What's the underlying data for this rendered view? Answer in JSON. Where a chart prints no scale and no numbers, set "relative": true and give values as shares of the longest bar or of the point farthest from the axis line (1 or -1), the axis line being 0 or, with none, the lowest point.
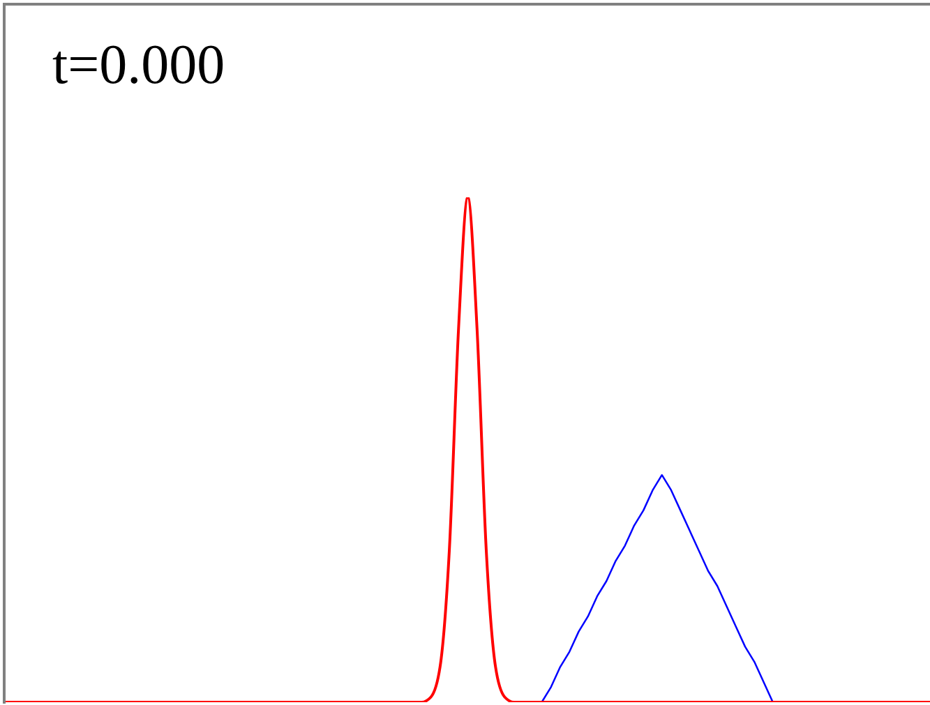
{
  "chart_data": {
    "type": "line",
    "relative": true,
    "marker": "none",
    "annotations": [
      "t=0.000"
    ],
    "categories": [
      null,
      null,
      null,
      null,
      null,
      null,
      null,
      null,
      null,
      null,
      null,
      null,
      null,
      null,
      null,
      null,
      null,
      null,
      null,
      null,
      null,
      null,
      null,
      null,
      null,
      null,
      null,
      null,
      null,
      null,
      null,
      null,
      null,
      null,
      null,
      null,
      null,
      null,
      null,
      null,
      null,
      null,
      null,
      null,
      null,
      null,
      null,
      null,
      null,
      null,
      null,
      null,
      null,
      null,
      null,
      null,
      null,
      null,
      null,
      null,
      null,
      null,
      null,
      null,
      null,
      null,
      null,
      null,
      null,
      null,
      null,
      null,
      null,
      null,
      null,
      null,
      null,
      null,
      null,
      null,
      null,
      null,
      null,
      null,
      null,
      null,
      null,
      null,
      null,
      null,
      null,
      null,
      null,
      null,
      null,
      null,
      null,
      null,
      null,
      null,
      null
    ],
    "series": [
      {
        "color": "#0000ff",
        "values": [
          null,
          null,
          null,
          null,
          null,
          null,
          null,
          null,
          null,
          null,
          null,
          null,
          null,
          null,
          null,
          null,
          null,
          null,
          null,
          null,
          null,
          null,
          null,
          null,
          null,
          null,
          null,
          null,
          null,
          null,
          null,
          null,
          null,
          null,
          null,
          null,
          null,
          null,
          null,
          null,
          null,
          null,
          null,
          null,
          null,
          null,
          null,
          null,
          null,
          null,
          null,
          null,
          null,
          null,
          null,
          null,
          null,
          null,
          0,
          0.03,
          0.07,
          0.1,
          0.14,
          0.17,
          0.21,
          0.24,
          0.28,
          0.31,
          0.35,
          0.38,
          0.42,
          0.45,
          0.42,
          0.38,
          0.34,
          0.3,
          0.26,
          0.23,
          0.19,
          0.15,
          0.11,
          0.08,
          0.04,
          0,
          null,
          null,
          null,
          null,
          null,
          null,
          null,
          null,
          null,
          null,
          null,
          null,
          null,
          null,
          null,
          null,
          null
        ]
      },
      {
        "color": "#ff0000",
        "values": [
          0,
          0,
          0,
          0,
          0,
          0,
          0,
          0,
          0,
          0,
          0,
          0,
          0,
          0,
          0,
          0,
          0,
          0,
          0,
          0,
          0,
          0,
          0,
          0,
          0,
          0,
          0,
          0,
          0,
          0,
          0,
          0,
          0,
          0,
          0,
          0,
          0,
          0,
          0,
          0,
          0,
          0,
          0,
          0,
          0,
          0,
          0.01,
          0.07,
          0.3,
          0.74,
          1,
          0.74,
          0.3,
          0.07,
          0.01,
          0,
          0,
          0,
          0,
          0,
          0,
          0,
          0,
          0,
          0,
          0,
          0,
          0,
          0,
          0,
          0,
          0,
          0,
          0,
          0,
          0,
          0,
          0,
          0,
          0,
          0,
          0,
          0,
          0,
          0,
          0,
          0,
          0,
          0,
          0,
          0,
          0,
          0,
          0,
          0,
          0,
          0,
          0,
          0,
          0,
          0
        ]
      }
    ]
  }
}
